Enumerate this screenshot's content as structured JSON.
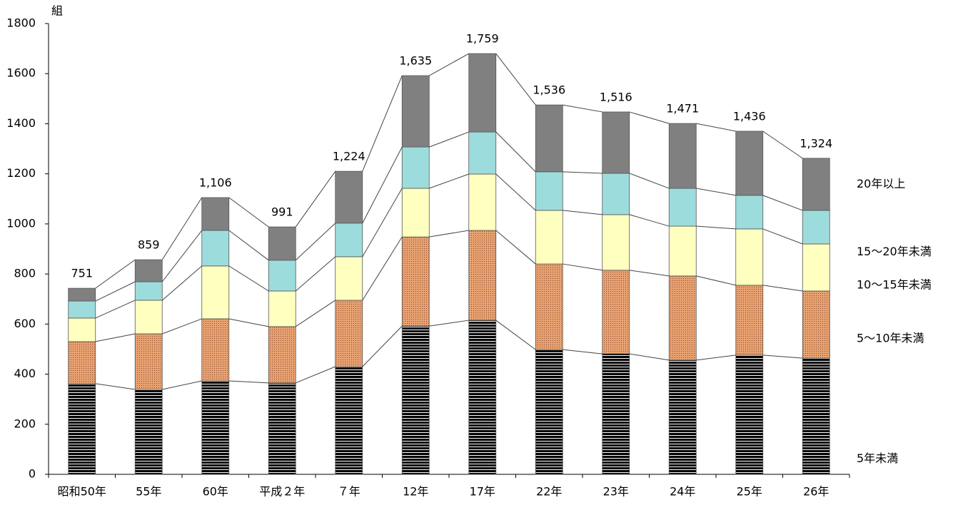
{
  "chart_data": {
    "type": "stacked_bar",
    "y_label": "組",
    "categories": [
      "昭和50年",
      "55年",
      "60年",
      "平成２年",
      "７年",
      "12年",
      "17年",
      "22年",
      "23年",
      "24年",
      "25年",
      "26年"
    ],
    "series": [
      {
        "name": "5年未満",
        "color": "#000000",
        "hatch": "horizontal",
        "values": [
          362,
          339,
          373,
          365,
          430,
          592,
          615,
          498,
          481,
          456,
          476,
          464
        ]
      },
      {
        "name": "5～10年未満",
        "color": "#e8a272",
        "hatch": "dots",
        "values": [
          168,
          222,
          248,
          225,
          265,
          356,
          359,
          342,
          334,
          336,
          279,
          268
        ]
      },
      {
        "name": "10～15年未満",
        "color": "#ffffc0",
        "values": [
          94,
          134,
          211,
          142,
          174,
          194,
          225,
          214,
          222,
          199,
          225,
          188
        ]
      },
      {
        "name": "15～20年未満",
        "color": "#9ddcdc",
        "values": [
          68,
          74,
          142,
          123,
          134,
          165,
          168,
          154,
          165,
          151,
          134,
          134
        ]
      },
      {
        "name": "20年以上",
        "color": "#808080",
        "values": [
          51,
          88,
          131,
          133,
          207,
          285,
          313,
          267,
          245,
          259,
          256,
          208
        ]
      }
    ],
    "totals": {
      "values": [
        751,
        859,
        1106,
        991,
        1224,
        1635,
        1759,
        1536,
        1516,
        1471,
        1436,
        1324
      ],
      "value_labels": [
        "751",
        "859",
        "1,106",
        "991",
        "1,224",
        "1,635",
        "1,759",
        "1,536",
        "1,516",
        "1,471",
        "1,436",
        "1,324"
      ]
    },
    "ylim": [
      0,
      1800
    ],
    "yticks": [
      0,
      200,
      400,
      600,
      800,
      1000,
      1200,
      1400,
      1600,
      1800
    ]
  }
}
